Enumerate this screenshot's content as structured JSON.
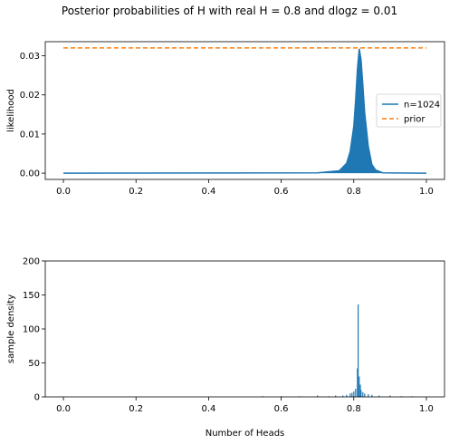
{
  "suptitle": "Posterior probabilities of H with real H = 0.8 and dlogz = 0.01",
  "chart_data": [
    {
      "type": "line",
      "ylabel": "likelihood",
      "xlim": [
        -0.05,
        1.05
      ],
      "ylim": [
        -0.0016,
        0.0336
      ],
      "xticks": [
        0.0,
        0.2,
        0.4,
        0.6,
        0.8,
        1.0
      ],
      "xtick_labels": [
        "0.0",
        "0.2",
        "0.4",
        "0.6",
        "0.8",
        "1.0"
      ],
      "yticks": [
        0.0,
        0.01,
        0.02,
        0.03
      ],
      "ytick_labels": [
        "0.00",
        "0.01",
        "0.02",
        "0.03"
      ],
      "legend": "center-right",
      "series": [
        {
          "name": "n=1024",
          "color": "#1f77b4",
          "style": "solid",
          "peak_x": 0.815,
          "peak_y": 0.0318,
          "x": [
            0.0,
            0.7,
            0.76,
            0.78,
            0.79,
            0.8,
            0.805,
            0.81,
            0.815,
            0.82,
            0.825,
            0.83,
            0.84,
            0.85,
            0.86,
            0.88,
            1.0
          ],
          "values": [
            0.0,
            0.0001,
            0.0006,
            0.0025,
            0.0055,
            0.012,
            0.0185,
            0.0265,
            0.0318,
            0.029,
            0.0225,
            0.0155,
            0.0068,
            0.0022,
            0.0008,
            0.0001,
            0.0
          ]
        },
        {
          "name": "prior",
          "color": "#ff7f0e",
          "style": "dashed",
          "x": [
            0.0,
            1.0
          ],
          "values": [
            0.032,
            0.032
          ]
        }
      ]
    },
    {
      "type": "bar",
      "ylabel": "sample density",
      "xlabel": "Number of Heads",
      "xlim": [
        -0.05,
        1.05
      ],
      "ylim": [
        0,
        200
      ],
      "xticks": [
        0.0,
        0.2,
        0.4,
        0.6,
        0.8,
        1.0
      ],
      "xtick_labels": [
        "0.0",
        "0.2",
        "0.4",
        "0.6",
        "0.8",
        "1.0"
      ],
      "yticks": [
        0,
        50,
        100,
        150,
        200
      ],
      "ytick_labels": [
        "0",
        "50",
        "100",
        "150",
        "200"
      ],
      "color": "#1f77b4",
      "x": [
        0.55,
        0.6,
        0.65,
        0.7,
        0.73,
        0.75,
        0.77,
        0.78,
        0.79,
        0.795,
        0.8,
        0.805,
        0.81,
        0.812,
        0.815,
        0.818,
        0.82,
        0.825,
        0.83,
        0.84,
        0.85,
        0.87,
        0.9,
        0.93,
        0.96
      ],
      "values": [
        1,
        1,
        1,
        2,
        1,
        2,
        2,
        3,
        5,
        6,
        8,
        12,
        42,
        136,
        30,
        18,
        10,
        7,
        5,
        4,
        3,
        2,
        2,
        1,
        1
      ]
    }
  ]
}
